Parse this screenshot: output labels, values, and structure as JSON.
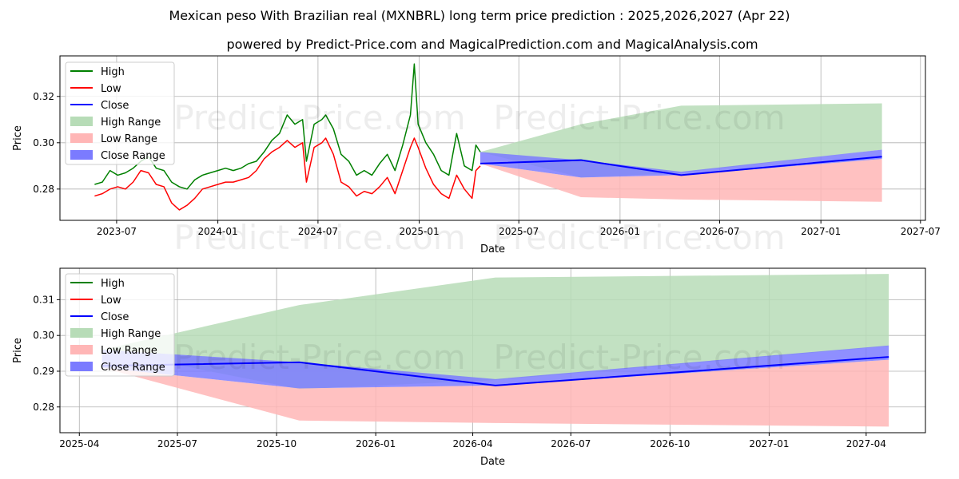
{
  "title": "Mexican peso With Brazilian real (MXNBRL) long term price prediction : 2025,2026,2027 (Apr 22)",
  "subtitle": "powered by Predict-Price.com and MagicalPrediction.com and MagicalAnalysis.com",
  "watermarks": [
    "Predict-Price.com",
    "Predict-Price.com",
    "Predict-Price.com",
    "Predict-Price.com"
  ],
  "colors": {
    "high": "#008000",
    "low": "#ff0000",
    "close": "#0000ff",
    "high_range": "#b7dcb7",
    "low_range": "#ffb6b6",
    "close_range": "#7b7bff",
    "grid": "#b0b0b0"
  },
  "chart_data": [
    {
      "type": "line",
      "panel": "top",
      "xlabel": "Date",
      "ylabel": "Price",
      "xlim": [
        "2023-03-20",
        "2027-07-10"
      ],
      "ylim": [
        0.2665,
        0.3375
      ],
      "xticks": [
        "2023-07",
        "2024-01",
        "2024-07",
        "2025-01",
        "2025-07",
        "2026-01",
        "2026-07",
        "2027-01",
        "2027-07"
      ],
      "yticks": [
        0.28,
        0.3,
        0.32
      ],
      "ytick_labels": [
        "0.28",
        "0.30",
        "0.32"
      ],
      "legend": [
        "High",
        "Low",
        "Close",
        "High Range",
        "Low Range",
        "Close Range"
      ],
      "legend_position": "upper-left",
      "history_high": [
        [
          "2023-05-22",
          0.282
        ],
        [
          "2023-06-05",
          0.283
        ],
        [
          "2023-06-19",
          0.288
        ],
        [
          "2023-07-03",
          0.286
        ],
        [
          "2023-07-17",
          0.287
        ],
        [
          "2023-07-31",
          0.289
        ],
        [
          "2023-08-14",
          0.292
        ],
        [
          "2023-08-28",
          0.294
        ],
        [
          "2023-09-11",
          0.289
        ],
        [
          "2023-09-25",
          0.288
        ],
        [
          "2023-10-09",
          0.283
        ],
        [
          "2023-10-23",
          0.281
        ],
        [
          "2023-11-06",
          0.28
        ],
        [
          "2023-11-20",
          0.284
        ],
        [
          "2023-12-04",
          0.286
        ],
        [
          "2023-12-18",
          0.287
        ],
        [
          "2024-01-01",
          0.288
        ],
        [
          "2024-01-15",
          0.289
        ],
        [
          "2024-01-29",
          0.288
        ],
        [
          "2024-02-12",
          0.289
        ],
        [
          "2024-02-26",
          0.291
        ],
        [
          "2024-03-11",
          0.292
        ],
        [
          "2024-03-25",
          0.296
        ],
        [
          "2024-04-08",
          0.301
        ],
        [
          "2024-04-22",
          0.304
        ],
        [
          "2024-05-06",
          0.312
        ],
        [
          "2024-05-20",
          0.308
        ],
        [
          "2024-06-03",
          0.31
        ],
        [
          "2024-06-10",
          0.292
        ],
        [
          "2024-06-24",
          0.308
        ],
        [
          "2024-07-08",
          0.31
        ],
        [
          "2024-07-15",
          0.312
        ],
        [
          "2024-07-29",
          0.306
        ],
        [
          "2024-08-12",
          0.295
        ],
        [
          "2024-08-26",
          0.292
        ],
        [
          "2024-09-09",
          0.286
        ],
        [
          "2024-09-23",
          0.288
        ],
        [
          "2024-10-07",
          0.286
        ],
        [
          "2024-10-21",
          0.291
        ],
        [
          "2024-11-04",
          0.295
        ],
        [
          "2024-11-18",
          0.288
        ],
        [
          "2024-12-02",
          0.299
        ],
        [
          "2024-12-16",
          0.312
        ],
        [
          "2024-12-23",
          0.334
        ],
        [
          "2024-12-30",
          0.308
        ],
        [
          "2025-01-13",
          0.3
        ],
        [
          "2025-01-27",
          0.295
        ],
        [
          "2025-02-10",
          0.288
        ],
        [
          "2025-02-24",
          0.286
        ],
        [
          "2025-03-10",
          0.304
        ],
        [
          "2025-03-24",
          0.29
        ],
        [
          "2025-04-07",
          0.288
        ],
        [
          "2025-04-14",
          0.299
        ],
        [
          "2025-04-22",
          0.296
        ]
      ],
      "history_low": [
        [
          "2023-05-22",
          0.277
        ],
        [
          "2023-06-05",
          0.278
        ],
        [
          "2023-06-19",
          0.28
        ],
        [
          "2023-07-03",
          0.281
        ],
        [
          "2023-07-17",
          0.28
        ],
        [
          "2023-07-31",
          0.283
        ],
        [
          "2023-08-14",
          0.288
        ],
        [
          "2023-08-28",
          0.287
        ],
        [
          "2023-09-11",
          0.282
        ],
        [
          "2023-09-25",
          0.281
        ],
        [
          "2023-10-09",
          0.274
        ],
        [
          "2023-10-23",
          0.271
        ],
        [
          "2023-11-06",
          0.273
        ],
        [
          "2023-11-20",
          0.276
        ],
        [
          "2023-12-04",
          0.28
        ],
        [
          "2023-12-18",
          0.281
        ],
        [
          "2024-01-01",
          0.282
        ],
        [
          "2024-01-15",
          0.283
        ],
        [
          "2024-01-29",
          0.283
        ],
        [
          "2024-02-12",
          0.284
        ],
        [
          "2024-02-26",
          0.285
        ],
        [
          "2024-03-11",
          0.288
        ],
        [
          "2024-03-25",
          0.293
        ],
        [
          "2024-04-08",
          0.296
        ],
        [
          "2024-04-22",
          0.298
        ],
        [
          "2024-05-06",
          0.301
        ],
        [
          "2024-05-20",
          0.298
        ],
        [
          "2024-06-03",
          0.3
        ],
        [
          "2024-06-10",
          0.283
        ],
        [
          "2024-06-24",
          0.298
        ],
        [
          "2024-07-08",
          0.3
        ],
        [
          "2024-07-15",
          0.302
        ],
        [
          "2024-07-29",
          0.295
        ],
        [
          "2024-08-12",
          0.283
        ],
        [
          "2024-08-26",
          0.281
        ],
        [
          "2024-09-09",
          0.277
        ],
        [
          "2024-09-23",
          0.279
        ],
        [
          "2024-10-07",
          0.278
        ],
        [
          "2024-10-21",
          0.281
        ],
        [
          "2024-11-04",
          0.285
        ],
        [
          "2024-11-18",
          0.278
        ],
        [
          "2024-12-02",
          0.288
        ],
        [
          "2024-12-16",
          0.298
        ],
        [
          "2024-12-23",
          0.302
        ],
        [
          "2024-12-30",
          0.298
        ],
        [
          "2025-01-13",
          0.289
        ],
        [
          "2025-01-27",
          0.282
        ],
        [
          "2025-02-10",
          0.278
        ],
        [
          "2025-02-24",
          0.276
        ],
        [
          "2025-03-10",
          0.286
        ],
        [
          "2025-03-24",
          0.28
        ],
        [
          "2025-04-07",
          0.276
        ],
        [
          "2025-04-14",
          0.288
        ],
        [
          "2025-04-22",
          0.29
        ]
      ],
      "prediction_dates": [
        "2025-04-22",
        "2025-10-22",
        "2026-04-22",
        "2027-04-22"
      ],
      "close": [
        0.291,
        0.2925,
        0.286,
        0.294
      ],
      "high_range": [
        [
          0.296,
          0.296
        ],
        [
          0.285,
          0.308
        ],
        [
          0.287,
          0.316
        ],
        [
          0.297,
          0.317
        ]
      ],
      "low_range": [
        [
          0.291,
          0.291
        ],
        [
          0.2765,
          0.285
        ],
        [
          0.2755,
          0.286
        ],
        [
          0.2745,
          0.293
        ]
      ],
      "close_range": [
        [
          0.291,
          0.296
        ],
        [
          0.285,
          0.2925
        ],
        [
          0.286,
          0.2875
        ],
        [
          0.293,
          0.297
        ]
      ]
    },
    {
      "type": "line",
      "panel": "bottom",
      "xlabel": "Date",
      "ylabel": "Price",
      "xlim": [
        "2025-03-14",
        "2027-05-26"
      ],
      "ylim": [
        0.2728,
        0.3188
      ],
      "xticks": [
        "2025-04",
        "2025-07",
        "2025-10",
        "2026-01",
        "2026-04",
        "2026-07",
        "2026-10",
        "2027-01",
        "2027-04"
      ],
      "yticks": [
        0.28,
        0.29,
        0.3,
        0.31
      ],
      "ytick_labels": [
        "0.28",
        "0.29",
        "0.30",
        "0.31"
      ],
      "legend": [
        "High",
        "Low",
        "Close",
        "High Range",
        "Low Range",
        "Close Range"
      ],
      "legend_position": "upper-left",
      "prediction_dates": [
        "2025-04-22",
        "2025-10-22",
        "2026-04-22",
        "2027-04-22"
      ],
      "close": [
        0.2915,
        0.2925,
        0.286,
        0.294
      ],
      "high_range": [
        [
          0.296,
          0.296
        ],
        [
          0.285,
          0.3085
        ],
        [
          0.2875,
          0.3162
        ],
        [
          0.297,
          0.3172
        ]
      ],
      "low_range": [
        [
          0.291,
          0.291
        ],
        [
          0.2762,
          0.2852
        ],
        [
          0.2755,
          0.286
        ],
        [
          0.2745,
          0.2932
        ]
      ],
      "close_range": [
        [
          0.291,
          0.296
        ],
        [
          0.2852,
          0.2925
        ],
        [
          0.286,
          0.2878
        ],
        [
          0.2932,
          0.2972
        ]
      ]
    }
  ]
}
